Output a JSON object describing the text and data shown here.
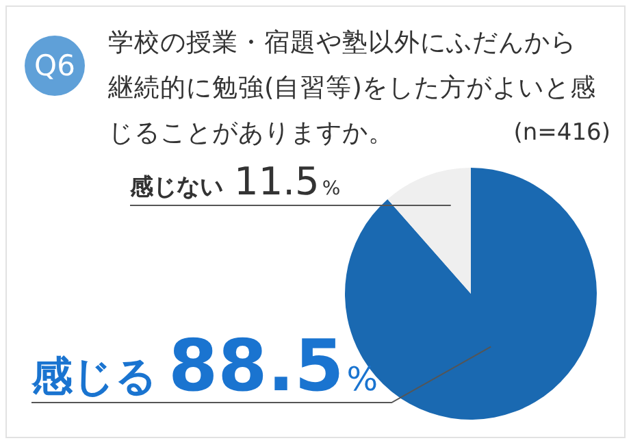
{
  "chart_data": {
    "type": "pie",
    "title": "学校の授業・宿題や塾以外にふだんから継続的に勉強(自習等)をした方がよいと感じることがありますか。",
    "annotations": [
      "Q6",
      "(n=416)"
    ],
    "categories": [
      "感じる",
      "感じない"
    ],
    "values": [
      88.5,
      11.5
    ],
    "colors": [
      "#1a69b1",
      "#efefef"
    ],
    "value_labels": [
      "88.5%",
      "11.5%"
    ],
    "legend": false
  }
}
